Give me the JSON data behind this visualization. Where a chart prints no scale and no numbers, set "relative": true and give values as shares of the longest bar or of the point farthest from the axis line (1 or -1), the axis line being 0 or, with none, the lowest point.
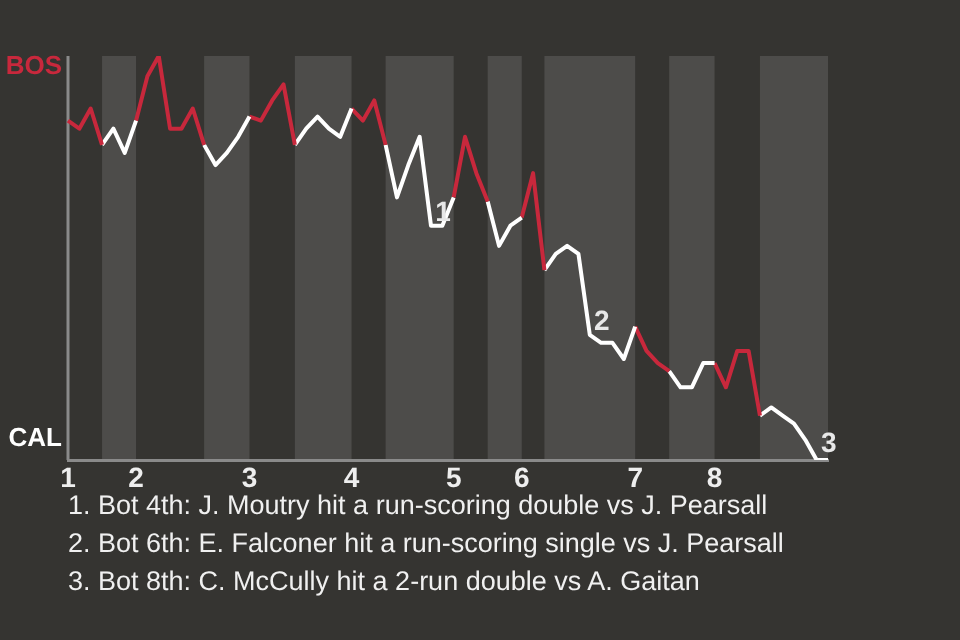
{
  "chart_data": {
    "type": "line",
    "categories": [
      "1",
      null,
      null,
      null,
      null,
      null,
      "2",
      null,
      null,
      null,
      null,
      null,
      null,
      null,
      null,
      null,
      "3",
      null,
      null,
      null,
      null,
      null,
      null,
      null,
      null,
      "4",
      null,
      null,
      null,
      null,
      null,
      null,
      null,
      null,
      "5",
      null,
      null,
      null,
      null,
      null,
      "6",
      null,
      null,
      null,
      null,
      null,
      null,
      null,
      null,
      null,
      "7",
      null,
      null,
      null,
      null,
      null,
      null,
      "8",
      null,
      null,
      null,
      null,
      null,
      null,
      null,
      null,
      null,
      null
    ],
    "relative": true,
    "series": [
      {
        "color": "#c8283c",
        "values": [
          0.84,
          0.82,
          0.87,
          0.78,
          null,
          null,
          null,
          null,
          null,
          null,
          null,
          null,
          null,
          null,
          null,
          null,
          null,
          null,
          null,
          null,
          null,
          null,
          null,
          null,
          null,
          null,
          null,
          null,
          null,
          null,
          null,
          null,
          null,
          null,
          null,
          null,
          null,
          null,
          null,
          null,
          null,
          null,
          null,
          null,
          null,
          null,
          null,
          null,
          null,
          null,
          null,
          null,
          null,
          null,
          null,
          null,
          null,
          null,
          null,
          null,
          null,
          null,
          null,
          null,
          null,
          null,
          null,
          null
        ]
      },
      {
        "color": "#ffffff",
        "values": [
          null,
          null,
          null,
          0.78,
          0.82,
          0.76,
          0.84,
          null,
          null,
          null,
          null,
          null,
          null,
          null,
          null,
          null,
          null,
          null,
          null,
          null,
          null,
          null,
          null,
          null,
          null,
          null,
          null,
          null,
          null,
          null,
          null,
          null,
          null,
          null,
          null,
          null,
          null,
          null,
          null,
          null,
          null,
          null,
          null,
          null,
          null,
          null,
          null,
          null,
          null,
          null,
          null,
          null,
          null,
          null,
          null,
          null,
          null,
          null,
          null,
          null,
          null,
          null,
          null,
          null,
          null,
          null,
          null,
          null
        ]
      },
      {
        "color": "#c8283c",
        "values": [
          null,
          null,
          null,
          null,
          null,
          null,
          0.84,
          0.95,
          1,
          0.82,
          0.82,
          0.87,
          0.78,
          null,
          null,
          null,
          null,
          null,
          null,
          null,
          null,
          null,
          null,
          null,
          null,
          null,
          null,
          null,
          null,
          null,
          null,
          null,
          null,
          null,
          null,
          null,
          null,
          null,
          null,
          null,
          null,
          null,
          null,
          null,
          null,
          null,
          null,
          null,
          null,
          null,
          null,
          null,
          null,
          null,
          null,
          null,
          null,
          null,
          null,
          null,
          null,
          null,
          null,
          null,
          null,
          null,
          null,
          null
        ]
      },
      {
        "color": "#ffffff",
        "values": [
          null,
          null,
          null,
          null,
          null,
          null,
          null,
          null,
          null,
          null,
          null,
          null,
          0.78,
          0.73,
          0.76,
          0.8,
          0.85,
          null,
          null,
          null,
          null,
          null,
          null,
          null,
          null,
          null,
          null,
          null,
          null,
          null,
          null,
          null,
          null,
          null,
          null,
          null,
          null,
          null,
          null,
          null,
          null,
          null,
          null,
          null,
          null,
          null,
          null,
          null,
          null,
          null,
          null,
          null,
          null,
          null,
          null,
          null,
          null,
          null,
          null,
          null,
          null,
          null,
          null,
          null,
          null,
          null,
          null,
          null
        ]
      },
      {
        "color": "#c8283c",
        "values": [
          null,
          null,
          null,
          null,
          null,
          null,
          null,
          null,
          null,
          null,
          null,
          null,
          null,
          null,
          null,
          null,
          0.85,
          0.84,
          0.89,
          0.93,
          0.78,
          null,
          null,
          null,
          null,
          null,
          null,
          null,
          null,
          null,
          null,
          null,
          null,
          null,
          null,
          null,
          null,
          null,
          null,
          null,
          null,
          null,
          null,
          null,
          null,
          null,
          null,
          null,
          null,
          null,
          null,
          null,
          null,
          null,
          null,
          null,
          null,
          null,
          null,
          null,
          null,
          null,
          null,
          null,
          null,
          null,
          null,
          null
        ]
      },
      {
        "color": "#ffffff",
        "values": [
          null,
          null,
          null,
          null,
          null,
          null,
          null,
          null,
          null,
          null,
          null,
          null,
          null,
          null,
          null,
          null,
          null,
          null,
          null,
          null,
          0.78,
          0.82,
          0.85,
          0.82,
          0.8,
          0.87,
          null,
          null,
          null,
          null,
          null,
          null,
          null,
          null,
          null,
          null,
          null,
          null,
          null,
          null,
          null,
          null,
          null,
          null,
          null,
          null,
          null,
          null,
          null,
          null,
          null,
          null,
          null,
          null,
          null,
          null,
          null,
          null,
          null,
          null,
          null,
          null,
          null,
          null,
          null,
          null,
          null,
          null
        ]
      },
      {
        "color": "#c8283c",
        "values": [
          null,
          null,
          null,
          null,
          null,
          null,
          null,
          null,
          null,
          null,
          null,
          null,
          null,
          null,
          null,
          null,
          null,
          null,
          null,
          null,
          null,
          null,
          null,
          null,
          null,
          0.87,
          0.84,
          0.89,
          0.78,
          null,
          null,
          null,
          null,
          null,
          null,
          null,
          null,
          null,
          null,
          null,
          null,
          null,
          null,
          null,
          null,
          null,
          null,
          null,
          null,
          null,
          null,
          null,
          null,
          null,
          null,
          null,
          null,
          null,
          null,
          null,
          null,
          null,
          null,
          null,
          null,
          null,
          null,
          null
        ]
      },
      {
        "color": "#ffffff",
        "values": [
          null,
          null,
          null,
          null,
          null,
          null,
          null,
          null,
          null,
          null,
          null,
          null,
          null,
          null,
          null,
          null,
          null,
          null,
          null,
          null,
          null,
          null,
          null,
          null,
          null,
          null,
          null,
          null,
          0.78,
          0.65,
          0.73,
          0.8,
          0.58,
          0.58,
          0.65,
          null,
          null,
          null,
          null,
          null,
          null,
          null,
          null,
          null,
          null,
          null,
          null,
          null,
          null,
          null,
          null,
          null,
          null,
          null,
          null,
          null,
          null,
          null,
          null,
          null,
          null,
          null,
          null,
          null,
          null,
          null,
          null,
          null
        ]
      },
      {
        "color": "#c8283c",
        "values": [
          null,
          null,
          null,
          null,
          null,
          null,
          null,
          null,
          null,
          null,
          null,
          null,
          null,
          null,
          null,
          null,
          null,
          null,
          null,
          null,
          null,
          null,
          null,
          null,
          null,
          null,
          null,
          null,
          null,
          null,
          null,
          null,
          null,
          null,
          0.65,
          0.8,
          0.71,
          0.64,
          null,
          null,
          null,
          null,
          null,
          null,
          null,
          null,
          null,
          null,
          null,
          null,
          null,
          null,
          null,
          null,
          null,
          null,
          null,
          null,
          null,
          null,
          null,
          null,
          null,
          null,
          null,
          null,
          null,
          null
        ]
      },
      {
        "color": "#ffffff",
        "values": [
          null,
          null,
          null,
          null,
          null,
          null,
          null,
          null,
          null,
          null,
          null,
          null,
          null,
          null,
          null,
          null,
          null,
          null,
          null,
          null,
          null,
          null,
          null,
          null,
          null,
          null,
          null,
          null,
          null,
          null,
          null,
          null,
          null,
          null,
          null,
          null,
          null,
          0.64,
          0.53,
          0.58,
          0.6,
          null,
          null,
          null,
          null,
          null,
          null,
          null,
          null,
          null,
          null,
          null,
          null,
          null,
          null,
          null,
          null,
          null,
          null,
          null,
          null,
          null,
          null,
          null,
          null,
          null,
          null,
          null
        ]
      },
      {
        "color": "#c8283c",
        "values": [
          null,
          null,
          null,
          null,
          null,
          null,
          null,
          null,
          null,
          null,
          null,
          null,
          null,
          null,
          null,
          null,
          null,
          null,
          null,
          null,
          null,
          null,
          null,
          null,
          null,
          null,
          null,
          null,
          null,
          null,
          null,
          null,
          null,
          null,
          null,
          null,
          null,
          null,
          null,
          null,
          0.6,
          0.71,
          0.47,
          null,
          null,
          null,
          null,
          null,
          null,
          null,
          null,
          null,
          null,
          null,
          null,
          null,
          null,
          null,
          null,
          null,
          null,
          null,
          null,
          null,
          null,
          null,
          null,
          null
        ]
      },
      {
        "color": "#ffffff",
        "values": [
          null,
          null,
          null,
          null,
          null,
          null,
          null,
          null,
          null,
          null,
          null,
          null,
          null,
          null,
          null,
          null,
          null,
          null,
          null,
          null,
          null,
          null,
          null,
          null,
          null,
          null,
          null,
          null,
          null,
          null,
          null,
          null,
          null,
          null,
          null,
          null,
          null,
          null,
          null,
          null,
          null,
          null,
          0.47,
          0.51,
          0.53,
          0.51,
          0.31,
          0.29,
          0.29,
          0.25,
          0.33,
          null,
          null,
          null,
          null,
          null,
          null,
          null,
          null,
          null,
          null,
          null,
          null,
          null,
          null,
          null,
          null,
          null
        ]
      },
      {
        "color": "#c8283c",
        "values": [
          null,
          null,
          null,
          null,
          null,
          null,
          null,
          null,
          null,
          null,
          null,
          null,
          null,
          null,
          null,
          null,
          null,
          null,
          null,
          null,
          null,
          null,
          null,
          null,
          null,
          null,
          null,
          null,
          null,
          null,
          null,
          null,
          null,
          null,
          null,
          null,
          null,
          null,
          null,
          null,
          null,
          null,
          null,
          null,
          null,
          null,
          null,
          null,
          null,
          null,
          0.33,
          0.27,
          0.24,
          0.22,
          null,
          null,
          null,
          null,
          null,
          null,
          null,
          null,
          null,
          null,
          null,
          null,
          null,
          null
        ]
      },
      {
        "color": "#ffffff",
        "values": [
          null,
          null,
          null,
          null,
          null,
          null,
          null,
          null,
          null,
          null,
          null,
          null,
          null,
          null,
          null,
          null,
          null,
          null,
          null,
          null,
          null,
          null,
          null,
          null,
          null,
          null,
          null,
          null,
          null,
          null,
          null,
          null,
          null,
          null,
          null,
          null,
          null,
          null,
          null,
          null,
          null,
          null,
          null,
          null,
          null,
          null,
          null,
          null,
          null,
          null,
          null,
          null,
          null,
          0.22,
          0.18,
          0.18,
          0.24,
          0.24,
          null,
          null,
          null,
          null,
          null,
          null,
          null,
          null,
          null,
          null
        ]
      },
      {
        "color": "#c8283c",
        "values": [
          null,
          null,
          null,
          null,
          null,
          null,
          null,
          null,
          null,
          null,
          null,
          null,
          null,
          null,
          null,
          null,
          null,
          null,
          null,
          null,
          null,
          null,
          null,
          null,
          null,
          null,
          null,
          null,
          null,
          null,
          null,
          null,
          null,
          null,
          null,
          null,
          null,
          null,
          null,
          null,
          null,
          null,
          null,
          null,
          null,
          null,
          null,
          null,
          null,
          null,
          null,
          null,
          null,
          null,
          null,
          null,
          null,
          0.24,
          0.18,
          0.27,
          0.27,
          0.11,
          null,
          null,
          null,
          null,
          null,
          null
        ]
      },
      {
        "color": "#ffffff",
        "values": [
          null,
          null,
          null,
          null,
          null,
          null,
          null,
          null,
          null,
          null,
          null,
          null,
          null,
          null,
          null,
          null,
          null,
          null,
          null,
          null,
          null,
          null,
          null,
          null,
          null,
          null,
          null,
          null,
          null,
          null,
          null,
          null,
          null,
          null,
          null,
          null,
          null,
          null,
          null,
          null,
          null,
          null,
          null,
          null,
          null,
          null,
          null,
          null,
          null,
          null,
          null,
          null,
          null,
          null,
          null,
          null,
          null,
          null,
          null,
          null,
          null,
          0.11,
          0.13,
          0.11,
          0.09,
          0.05,
          0,
          0
        ]
      }
    ],
    "tick_labels": "x",
    "annotations": [
      "BOS",
      "CAL",
      {
        "text": "1",
        "y": 0.58
      },
      {
        "text": "2",
        "y": 0.31
      },
      {
        "text": "3",
        "y": 0
      },
      "1. Bot 4th: J. Moutry hit a run-scoring double vs J. Pearsall",
      "2. Bot 6th: E. Falconer hit a run-scoring single vs J. Pearsall",
      "3. Bot 8th: C. McCully hit a 2-run double vs A. Gaitan"
    ]
  }
}
